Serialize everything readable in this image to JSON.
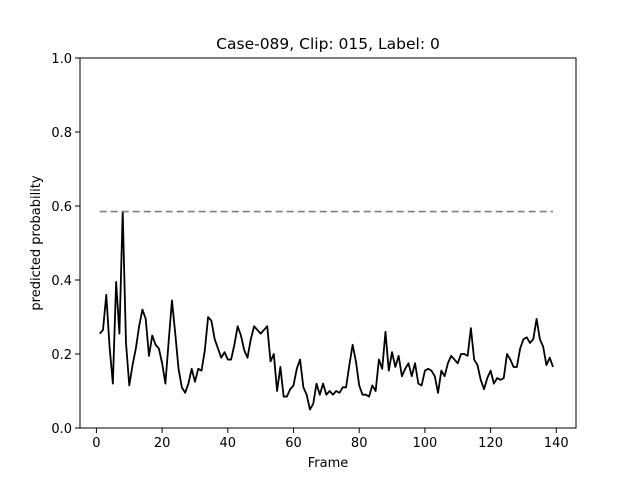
{
  "chart_data": {
    "type": "line",
    "title": "Case-089, Clip: 015, Label: 0",
    "xlabel": "Frame",
    "ylabel": "predicted probability",
    "xlim": [
      -5,
      146
    ],
    "ylim": [
      0.0,
      1.0
    ],
    "xticks": [
      "0",
      "20",
      "40",
      "60",
      "80",
      "100",
      "120",
      "140"
    ],
    "xtick_values": [
      0,
      20,
      40,
      60,
      80,
      100,
      120,
      140
    ],
    "yticks": [
      "0.0",
      "0.2",
      "0.4",
      "0.6",
      "0.8",
      "1.0"
    ],
    "ytick_values": [
      0.0,
      0.2,
      0.4,
      0.6,
      0.8,
      1.0
    ],
    "grid": false,
    "series": [
      {
        "color": "#000000",
        "style": "solid",
        "x": [
          1,
          2,
          3,
          4,
          5,
          6,
          7,
          8,
          9,
          10,
          11,
          12,
          13,
          14,
          15,
          16,
          17,
          18,
          19,
          20,
          21,
          22,
          23,
          24,
          25,
          26,
          27,
          28,
          29,
          30,
          31,
          32,
          33,
          34,
          35,
          36,
          37,
          38,
          39,
          40,
          41,
          42,
          43,
          44,
          45,
          46,
          47,
          48,
          49,
          50,
          51,
          52,
          53,
          54,
          55,
          56,
          57,
          58,
          59,
          60,
          61,
          62,
          63,
          64,
          65,
          66,
          67,
          68,
          69,
          70,
          71,
          72,
          73,
          74,
          75,
          76,
          77,
          78,
          79,
          80,
          81,
          82,
          83,
          84,
          85,
          86,
          87,
          88,
          89,
          90,
          91,
          92,
          93,
          94,
          95,
          96,
          97,
          98,
          99,
          100,
          101,
          102,
          103,
          104,
          105,
          106,
          107,
          108,
          109,
          110,
          111,
          112,
          113,
          114,
          115,
          116,
          117,
          118,
          119,
          120,
          121,
          122,
          123,
          124,
          125,
          126,
          127,
          128,
          129,
          130,
          131,
          132,
          133,
          134,
          135,
          136,
          137,
          138,
          139
        ],
        "y": [
          0.255,
          0.265,
          0.36,
          0.22,
          0.12,
          0.395,
          0.255,
          0.585,
          0.23,
          0.115,
          0.17,
          0.215,
          0.275,
          0.32,
          0.295,
          0.195,
          0.25,
          0.225,
          0.215,
          0.175,
          0.12,
          0.235,
          0.345,
          0.255,
          0.16,
          0.11,
          0.095,
          0.12,
          0.16,
          0.125,
          0.16,
          0.155,
          0.21,
          0.3,
          0.29,
          0.24,
          0.215,
          0.19,
          0.205,
          0.185,
          0.185,
          0.225,
          0.275,
          0.25,
          0.21,
          0.19,
          0.24,
          0.275,
          0.265,
          0.255,
          0.265,
          0.275,
          0.18,
          0.2,
          0.1,
          0.165,
          0.085,
          0.085,
          0.105,
          0.115,
          0.16,
          0.185,
          0.11,
          0.09,
          0.05,
          0.065,
          0.12,
          0.09,
          0.12,
          0.09,
          0.1,
          0.09,
          0.1,
          0.095,
          0.11,
          0.11,
          0.17,
          0.225,
          0.18,
          0.115,
          0.09,
          0.09,
          0.085,
          0.115,
          0.1,
          0.185,
          0.16,
          0.26,
          0.155,
          0.205,
          0.165,
          0.195,
          0.14,
          0.16,
          0.175,
          0.14,
          0.175,
          0.12,
          0.115,
          0.155,
          0.16,
          0.155,
          0.14,
          0.095,
          0.155,
          0.14,
          0.175,
          0.195,
          0.185,
          0.175,
          0.2,
          0.2,
          0.195,
          0.27,
          0.185,
          0.17,
          0.13,
          0.105,
          0.135,
          0.155,
          0.12,
          0.135,
          0.13,
          0.135,
          0.2,
          0.185,
          0.165,
          0.165,
          0.215,
          0.24,
          0.245,
          0.23,
          0.24,
          0.295,
          0.24,
          0.22,
          0.17,
          0.19,
          0.165
        ]
      },
      {
        "color": "#808080",
        "style": "dashed",
        "x": [
          1,
          139
        ],
        "y": [
          0.585,
          0.585
        ]
      }
    ]
  }
}
